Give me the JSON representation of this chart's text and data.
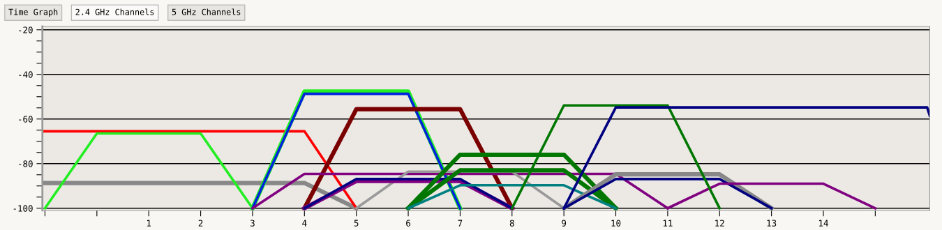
{
  "chart_data": {
    "type": "line",
    "annotations": [
      "Time Graph",
      "2.4 GHz Channels",
      "5 GHz Channels"
    ],
    "xlim": [
      -1.05,
      16.05
    ],
    "ylim": [
      -101,
      -18.5
    ],
    "xticks": [
      {
        "value": -1,
        "label": null
      },
      {
        "value": 0,
        "label": null
      },
      1,
      2,
      3,
      4,
      5,
      6,
      7,
      8,
      9,
      10,
      11,
      12,
      13,
      14,
      {
        "value": 15,
        "label": null
      }
    ],
    "yticks": [
      -20,
      {
        "value": -25,
        "label": null
      },
      {
        "value": -30,
        "label": null
      },
      {
        "value": -35,
        "label": null
      },
      -40,
      {
        "value": -45,
        "label": null
      },
      {
        "value": -50,
        "label": null
      },
      {
        "value": -55,
        "label": null
      },
      -60,
      {
        "value": -65,
        "label": null
      },
      {
        "value": -70,
        "label": null
      },
      {
        "value": -75,
        "label": null
      },
      -80,
      {
        "value": -85,
        "label": null
      },
      {
        "value": -90,
        "label": null
      },
      {
        "value": -95,
        "label": null
      },
      -100
    ],
    "grid": "y",
    "legend": false,
    "marker": "none",
    "line_style": "solid",
    "series": [
      {
        "color": "#888888",
        "x": [
          -1.05,
          4,
          5
        ],
        "values": [
          -88.7,
          -88.7,
          -100
        ]
      },
      {
        "color": "#ff0000",
        "x": [
          -1.05,
          4,
          5
        ],
        "values": [
          -65.5,
          -65.5,
          -100
        ]
      },
      {
        "color": "#22ee22",
        "x": [
          -1,
          0,
          2,
          3
        ],
        "values": [
          -100,
          -66.5,
          -66.5,
          -100
        ]
      },
      {
        "color": "#22ee22",
        "x": [
          3,
          4,
          6,
          7
        ],
        "values": [
          -100,
          -47.7,
          -47.7,
          -100
        ]
      },
      {
        "color": "#0022dd",
        "x": [
          3,
          4,
          6,
          7
        ],
        "values": [
          -100,
          -48.7,
          -48.7,
          -100
        ]
      },
      {
        "color": "#7a0000",
        "x": [
          4,
          5,
          7,
          8
        ],
        "values": [
          -100,
          -55.6,
          -55.6,
          -100
        ]
      },
      {
        "color": "#800080",
        "x": [
          3,
          4,
          10,
          11
        ],
        "values": [
          -100,
          -84.6,
          -84.6,
          -100
        ]
      },
      {
        "color": "#999999",
        "x": [
          5,
          6,
          8,
          9
        ],
        "values": [
          -100,
          -83.6,
          -83.6,
          -100
        ]
      },
      {
        "color": "#800080",
        "x": [
          4,
          5,
          7,
          8
        ],
        "values": [
          -100,
          -87.8,
          -87.8,
          -100
        ]
      },
      {
        "color": "#000080",
        "x": [
          4,
          5,
          7,
          8
        ],
        "values": [
          -100,
          -86.9,
          -86.9,
          -100
        ]
      },
      {
        "color": "#007700",
        "x": [
          6,
          7,
          9,
          10
        ],
        "values": [
          -100,
          -76.0,
          -76.0,
          -100
        ]
      },
      {
        "color": "#007700",
        "x": [
          6,
          7,
          9,
          10
        ],
        "values": [
          -100,
          -83.0,
          -83.0,
          -100
        ]
      },
      {
        "color": "#008080",
        "x": [
          6,
          7,
          9,
          10
        ],
        "values": [
          -100,
          -89.7,
          -89.7,
          -100
        ]
      },
      {
        "color": "#888888",
        "x": [
          9,
          10,
          12,
          13
        ],
        "values": [
          -100,
          -84.8,
          -84.8,
          -100
        ]
      },
      {
        "color": "#000080",
        "x": [
          9,
          10,
          12,
          13
        ],
        "values": [
          -100,
          -86.9,
          -86.9,
          -100
        ]
      },
      {
        "color": "#800080",
        "x": [
          11,
          12,
          14,
          15
        ],
        "values": [
          -100,
          -89.0,
          -89.0,
          -100
        ]
      },
      {
        "color": "#007700",
        "x": [
          8,
          9,
          11,
          12
        ],
        "values": [
          -100,
          -53.9,
          -53.9,
          -100
        ]
      },
      {
        "color": "#000080",
        "x": [
          9,
          10,
          16,
          16.05
        ],
        "values": [
          -100,
          -54.8,
          -54.8,
          -58.5
        ]
      }
    ]
  }
}
